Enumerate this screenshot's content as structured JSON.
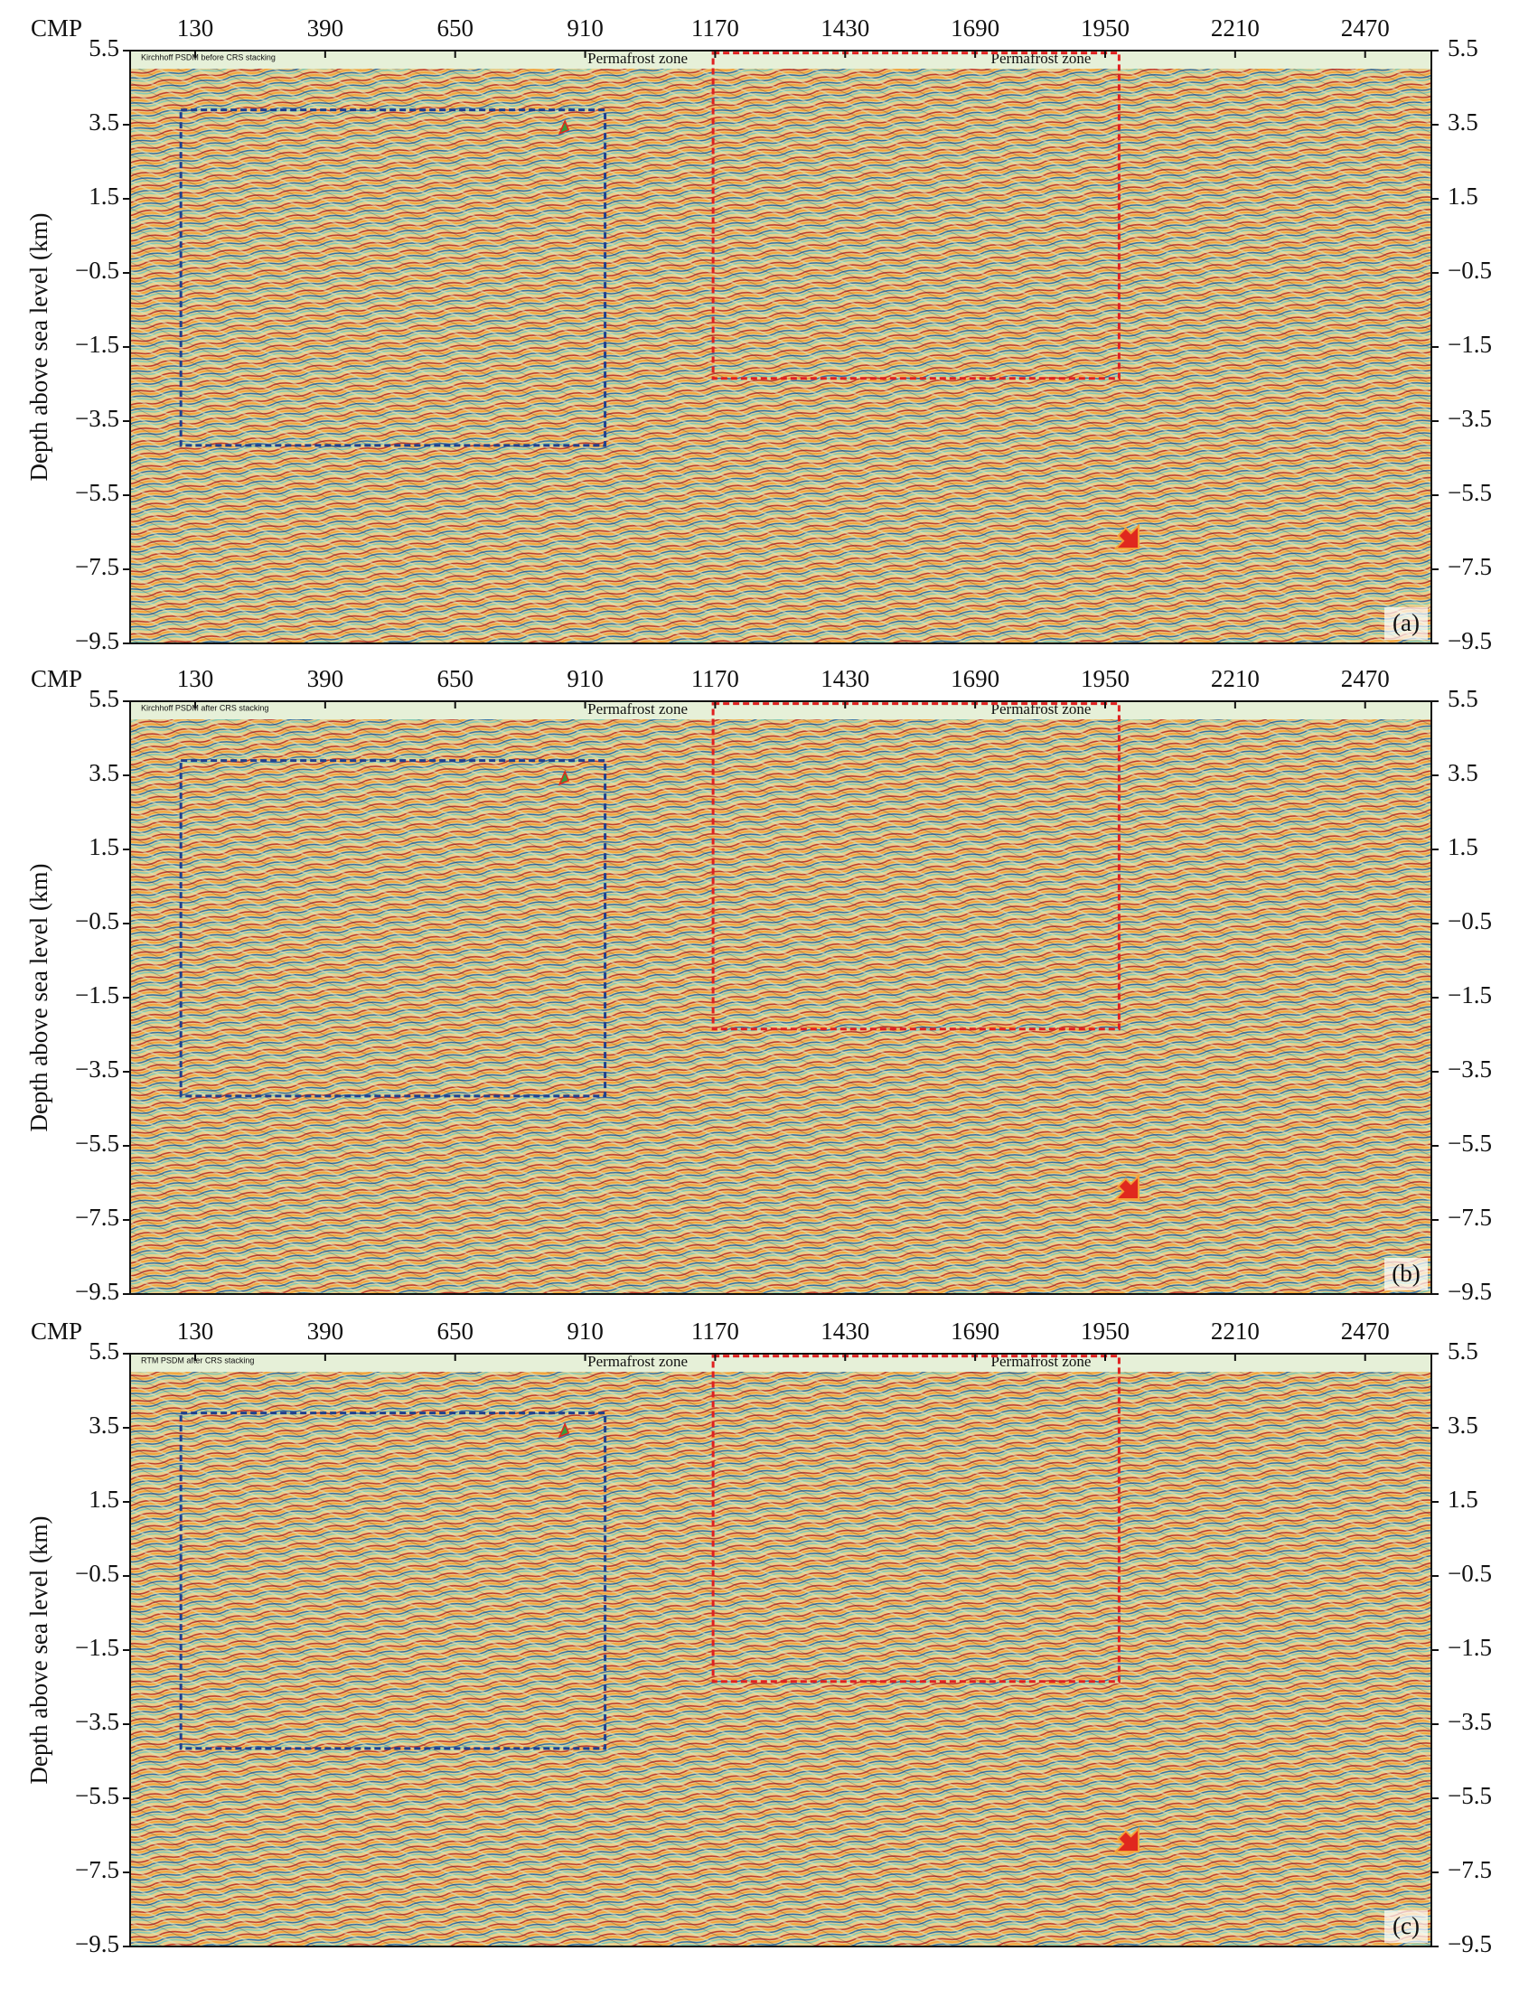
{
  "figure": {
    "x_axis_label": "CMP",
    "y_axis_label": "Depth above sea level (km)",
    "xticks": [
      "130",
      "390",
      "650",
      "910",
      "1170",
      "1430",
      "1690",
      "1950",
      "2210",
      "2470"
    ],
    "yticks": [
      "5.5",
      "3.5",
      "1.5",
      "−0.5",
      "−1.5",
      "−3.5",
      "−5.5",
      "−7.5",
      "−9.5"
    ],
    "zone_label": "Permafrost zone",
    "panels": [
      {
        "title": "Kirchhoff PSDM before CRS stacking",
        "label": "(a)"
      },
      {
        "title": "Kirchhoff PSDM after CRS stacking",
        "label": "(b)"
      },
      {
        "title": "RTM PSDM after CRS stacking",
        "label": "(c)"
      }
    ]
  }
}
